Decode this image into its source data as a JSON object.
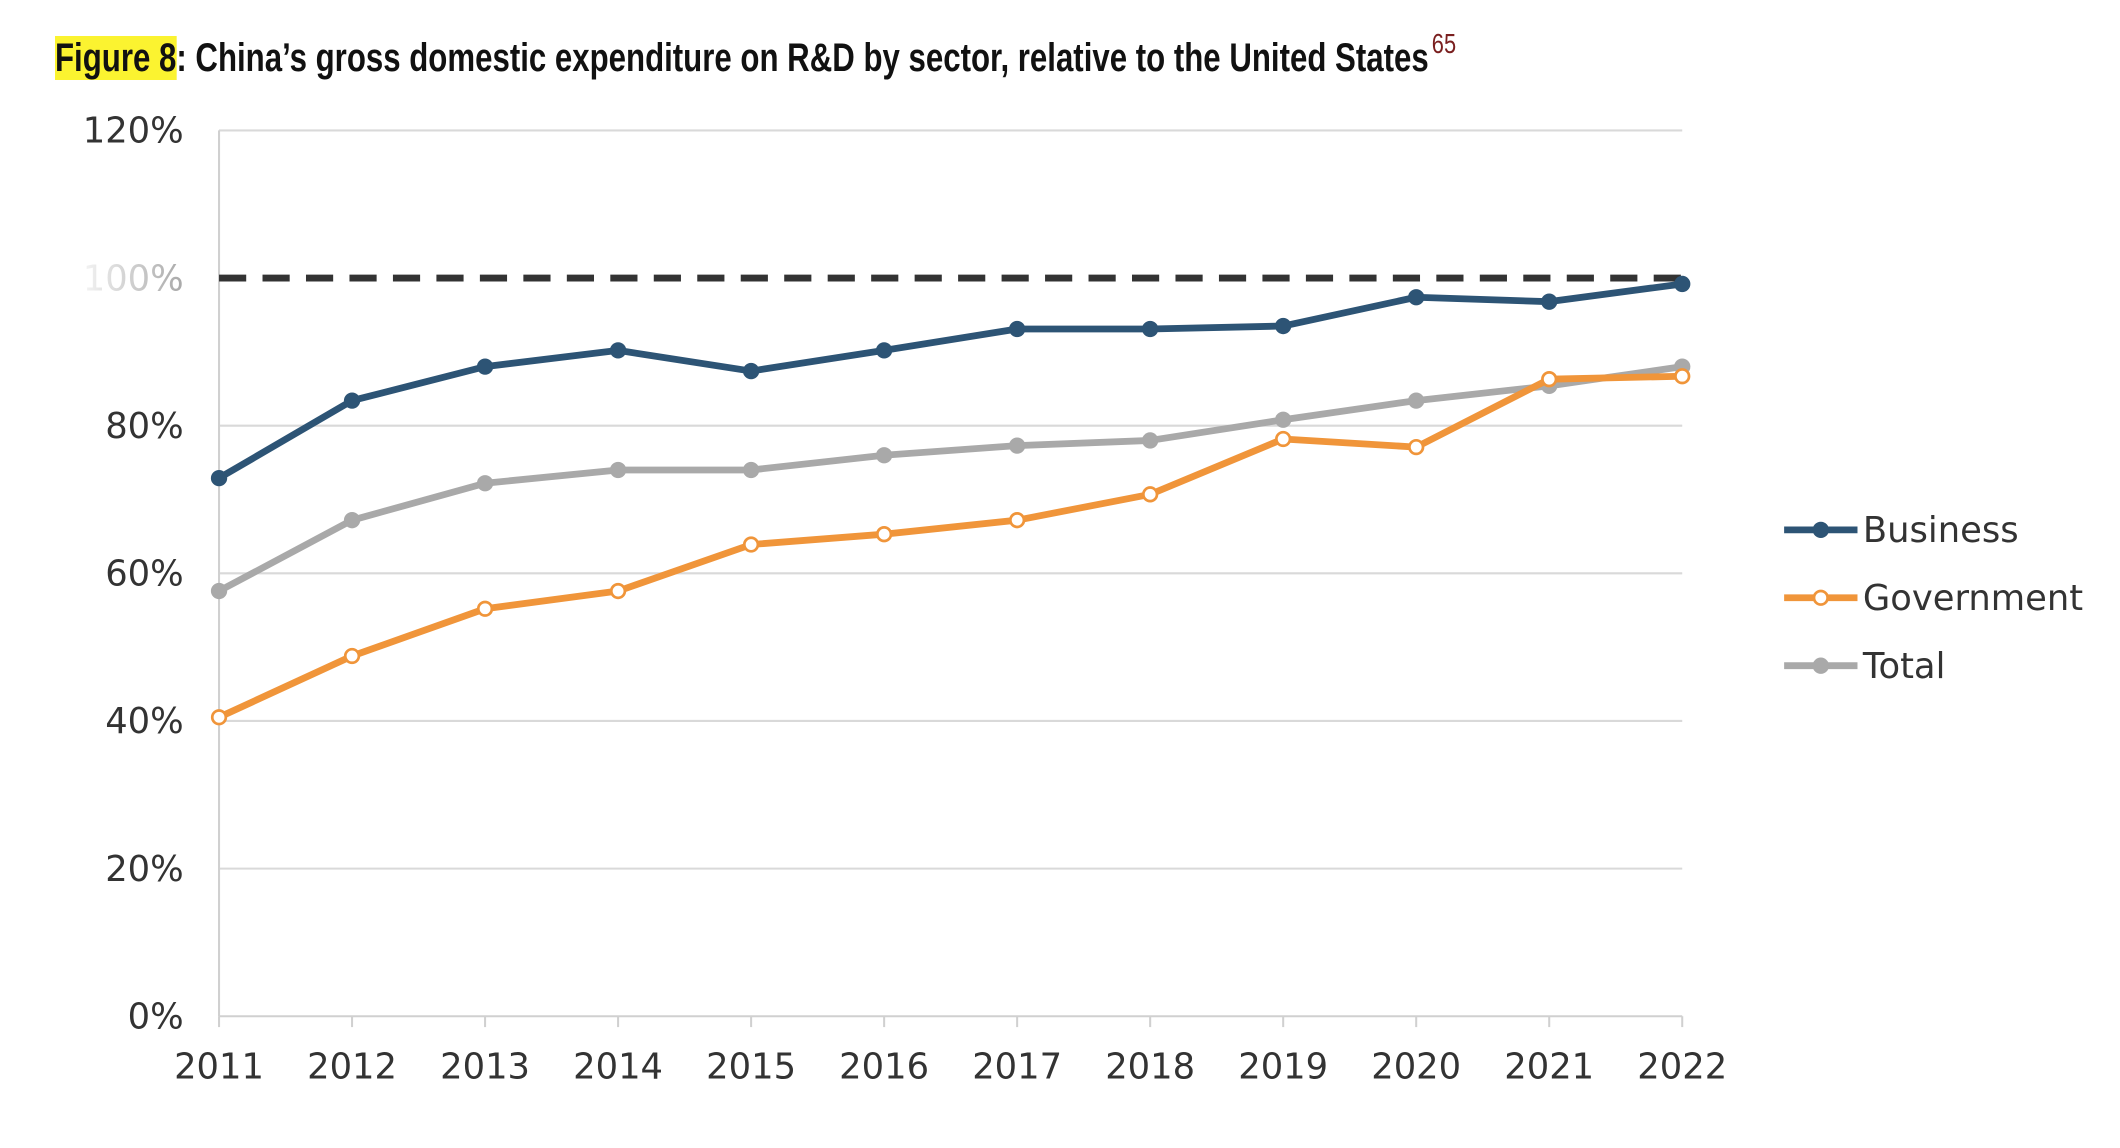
{
  "title": {
    "figure_label": "Figure 8",
    "text": ": China’s gross domestic expenditure on R&D by sector, relative to the United States",
    "footnote": "65"
  },
  "chart_data": {
    "type": "line",
    "title": "China’s gross domestic expenditure on R&D by sector, relative to the United States",
    "x": [
      "2011",
      "2012",
      "2013",
      "2014",
      "2015",
      "2016",
      "2017",
      "2018",
      "2019",
      "2020",
      "2021",
      "2022"
    ],
    "ylim": [
      0,
      120
    ],
    "yticks": [
      0,
      20,
      40,
      60,
      80,
      100,
      120
    ],
    "ytick_labels": [
      "0%",
      "20%",
      "40%",
      "60%",
      "80%",
      "100%",
      "120%"
    ],
    "reference_line": {
      "y": 100,
      "style": "dashed",
      "color": "#333333"
    },
    "grid": true,
    "legend_position": "right",
    "series": [
      {
        "name": "Business",
        "color": "#2d5475",
        "marker": "filled-diamond",
        "values": [
          72.9,
          83.4,
          88.0,
          90.2,
          87.4,
          90.2,
          93.1,
          93.1,
          93.5,
          97.4,
          96.8,
          99.2
        ]
      },
      {
        "name": "Government",
        "color": "#f0953a",
        "marker": "open-circle",
        "values": [
          40.5,
          48.8,
          55.2,
          57.6,
          63.9,
          65.3,
          67.2,
          70.7,
          78.2,
          77.1,
          86.3,
          86.7
        ]
      },
      {
        "name": "Total",
        "color": "#a9a9a9",
        "marker": "filled-diamond",
        "values": [
          57.6,
          67.2,
          72.2,
          74.0,
          74.0,
          76.0,
          77.3,
          78.0,
          80.8,
          83.4,
          85.4,
          88.0
        ]
      }
    ]
  }
}
